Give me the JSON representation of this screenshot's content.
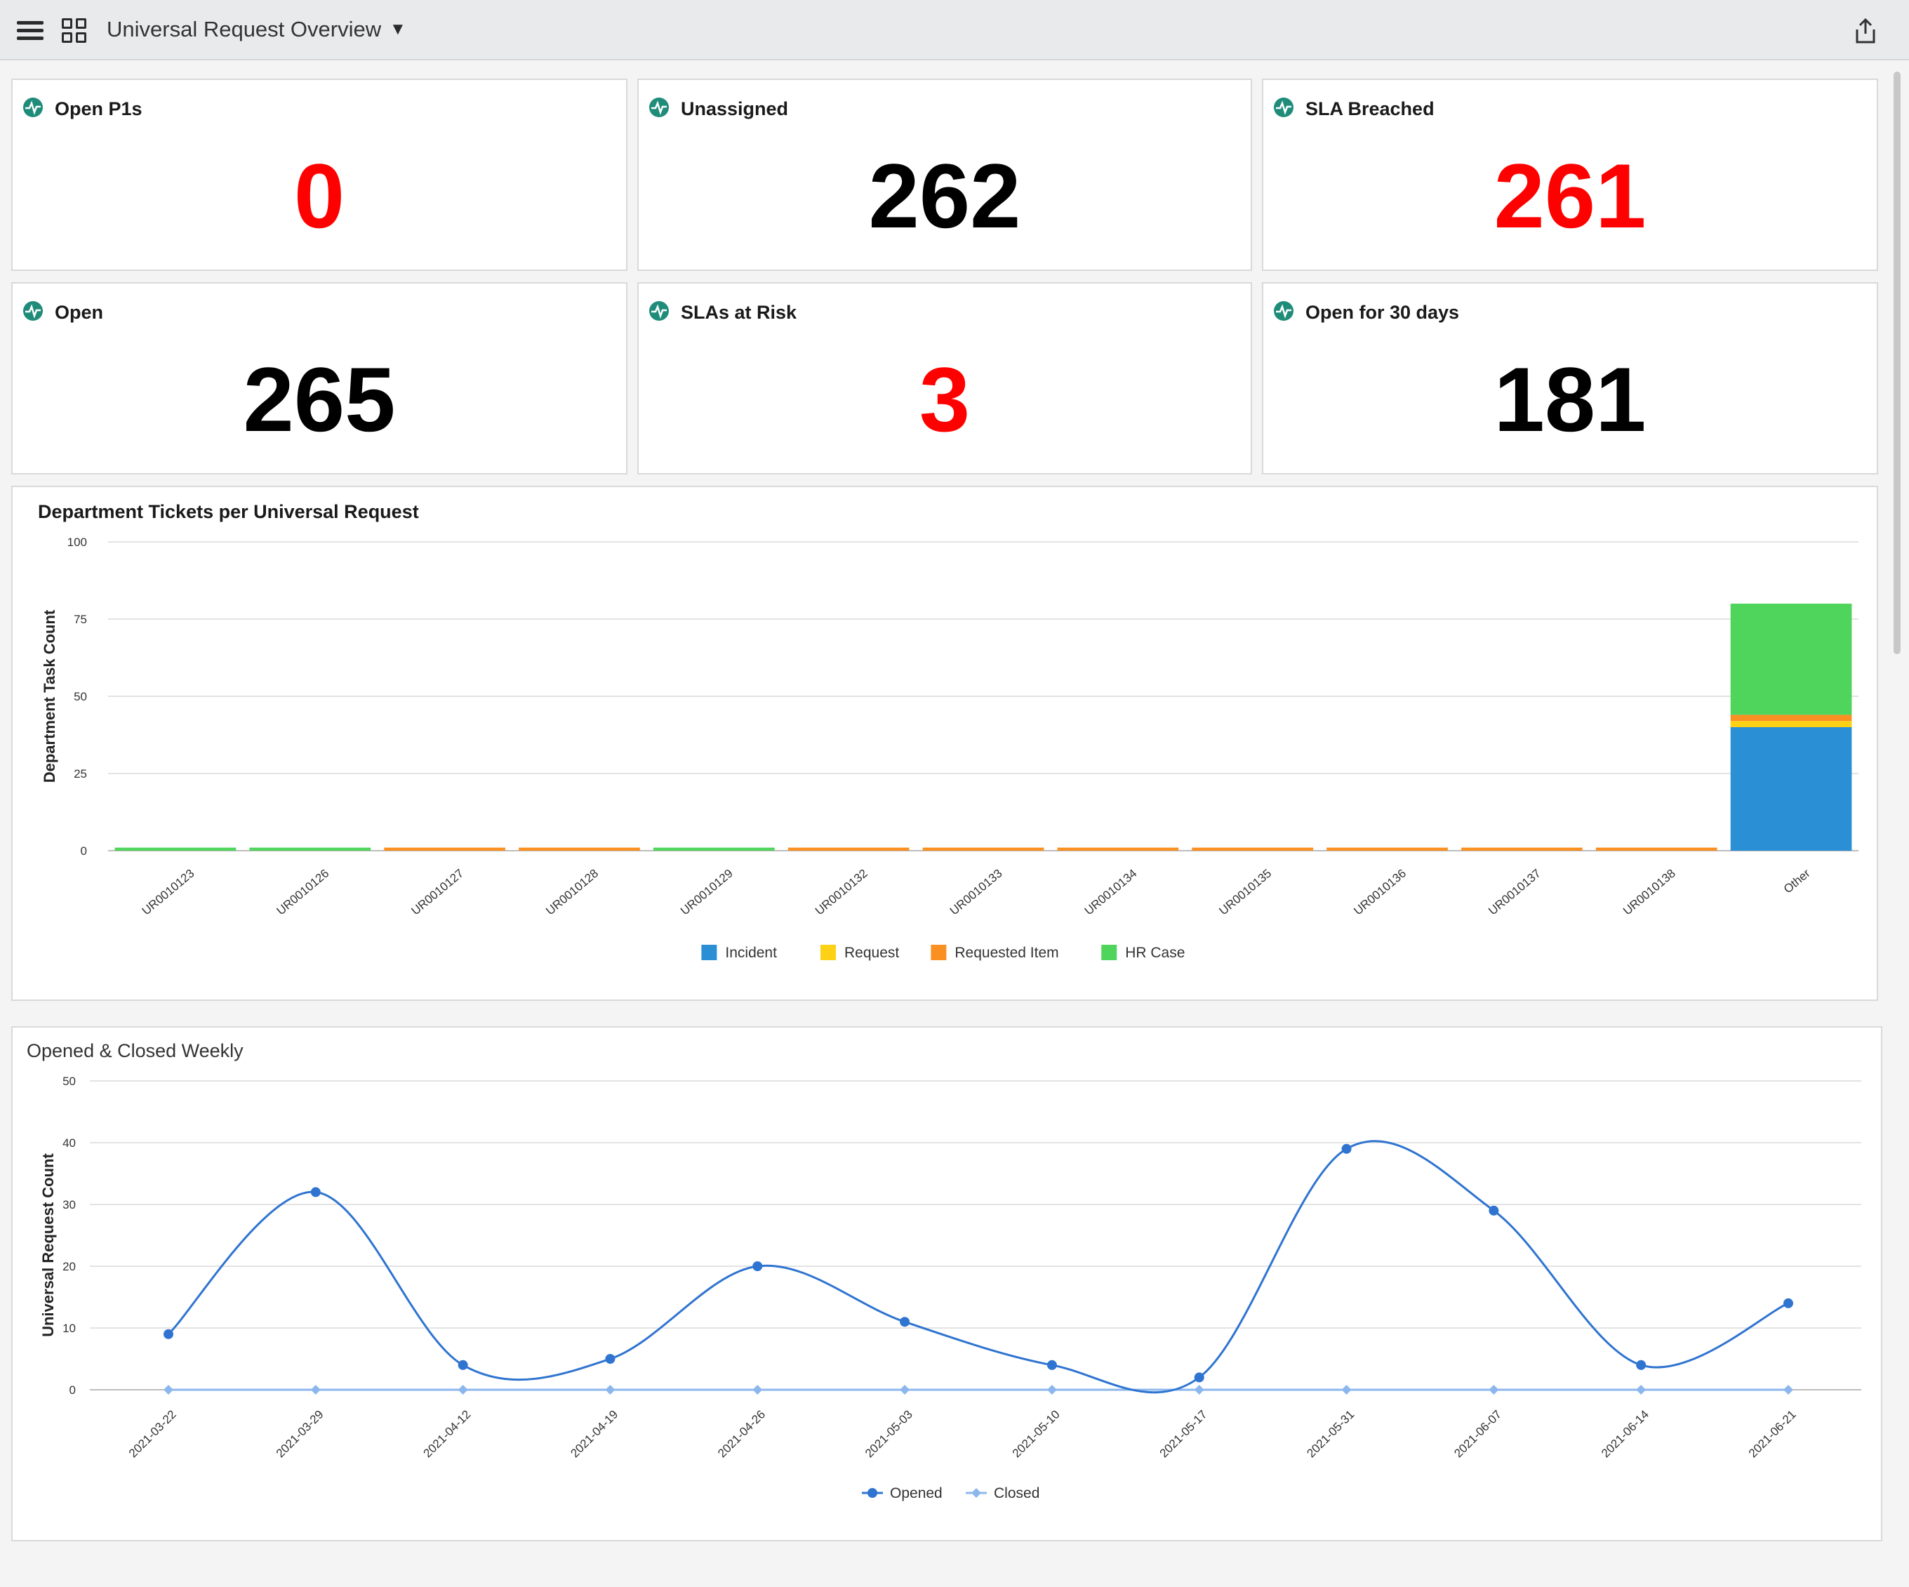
{
  "header": {
    "title": "Universal Request Overview"
  },
  "cards": [
    {
      "label": "Open P1s",
      "value": "0",
      "color": "#ff0000"
    },
    {
      "label": "Unassigned",
      "value": "262",
      "color": "#000000"
    },
    {
      "label": "SLA Breached",
      "value": "261",
      "color": "#ff0000"
    },
    {
      "label": "Open",
      "value": "265",
      "color": "#000000"
    },
    {
      "label": "SLAs at Risk",
      "value": "3",
      "color": "#ff0000"
    },
    {
      "label": "Open for 30 days",
      "value": "181",
      "color": "#000000"
    }
  ],
  "chart_data": [
    {
      "type": "bar",
      "stacked": true,
      "title": "Department Tickets per Universal Request",
      "xlabel": "",
      "ylabel": "Department Task Count",
      "ylim": [
        0,
        100
      ],
      "yticks": [
        0,
        25,
        50,
        75,
        100
      ],
      "grid": true,
      "legend": "bottom",
      "categories": [
        "UR0010123",
        "UR0010126",
        "UR0010127",
        "UR0010128",
        "UR0010129",
        "UR0010132",
        "UR0010133",
        "UR0010134",
        "UR0010135",
        "UR0010136",
        "UR0010137",
        "UR0010138",
        "Other"
      ],
      "series": [
        {
          "name": "Incident",
          "color": "#2b8fd6",
          "values": [
            0,
            0,
            0,
            0,
            0,
            0,
            0,
            0,
            0,
            0,
            0,
            0,
            40
          ]
        },
        {
          "name": "Request",
          "color": "#fcd116",
          "values": [
            0,
            0,
            0,
            0,
            0,
            0,
            0,
            0,
            0,
            0,
            0,
            0,
            2
          ]
        },
        {
          "name": "Requested Item",
          "color": "#fb9022",
          "values": [
            0,
            0,
            1,
            1,
            0,
            1,
            1,
            1,
            1,
            1,
            1,
            1,
            2
          ]
        },
        {
          "name": "HR Case",
          "color": "#4fd45c",
          "values": [
            1,
            1,
            0,
            0,
            1,
            0,
            0,
            0,
            0,
            0,
            0,
            0,
            36
          ]
        }
      ]
    },
    {
      "type": "line",
      "title": "Opened & Closed Weekly",
      "xlabel": "",
      "ylabel": "Universal Request Count",
      "ylim": [
        0,
        50
      ],
      "yticks": [
        0,
        10,
        20,
        30,
        40,
        50
      ],
      "grid": true,
      "legend": "bottom",
      "x": [
        "2021-03-22",
        "2021-03-29",
        "2021-04-12",
        "2021-04-19",
        "2021-04-26",
        "2021-05-03",
        "2021-05-10",
        "2021-05-17",
        "2021-05-31",
        "2021-06-07",
        "2021-06-14",
        "2021-06-21"
      ],
      "series": [
        {
          "name": "Opened",
          "color": "#2f74d0",
          "values": [
            9,
            32,
            4,
            5,
            20,
            11,
            4,
            2,
            39,
            29,
            4,
            14
          ]
        },
        {
          "name": "Closed",
          "color": "#8cb7ee",
          "values": [
            0,
            0,
            0,
            0,
            0,
            0,
            0,
            0,
            0,
            0,
            0,
            0
          ]
        }
      ]
    }
  ]
}
